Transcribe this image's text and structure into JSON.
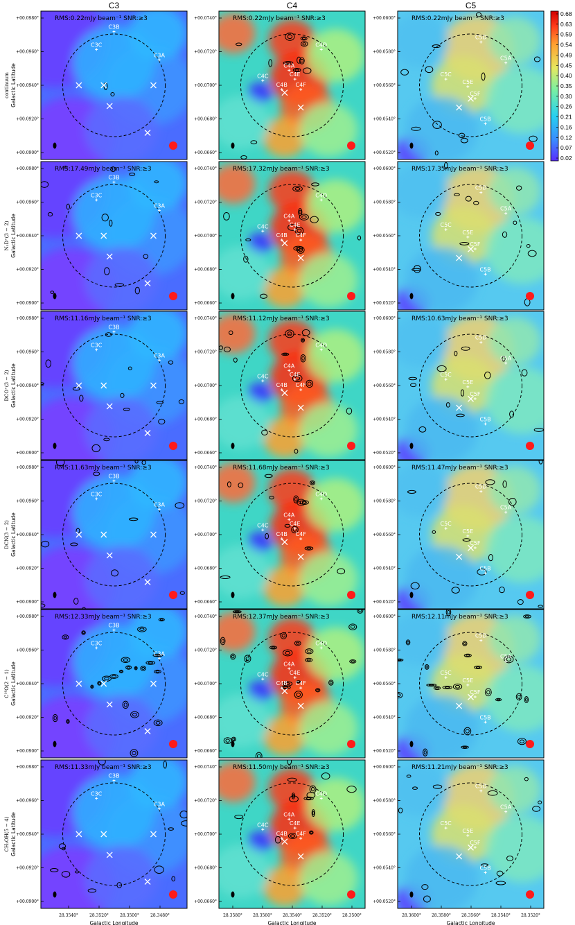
{
  "columns": [
    "C3",
    "C4",
    "C5"
  ],
  "rows": [
    {
      "label": "continuum",
      "rms": [
        "RMS:0.22mJy beam⁻¹ SNR:≥3",
        "RMS:0.22mJy beam⁻¹ SNR:≥3",
        "RMS:0.22mJy beam⁻¹ SNR:≥3"
      ]
    },
    {
      "label": "N₂D⁺(3 − 2)",
      "rms": [
        "RMS:17.49mJy beam⁻¹ SNR:≥3",
        "RMS:17.32mJy beam⁻¹ SNR:≥3",
        "RMS:17.35mJy beam⁻¹ SNR:≥3"
      ]
    },
    {
      "label": "DCO⁺(3 − 2)",
      "rms": [
        "RMS:11.16mJy beam⁻¹ SNR:≥3",
        "RMS:11.12mJy beam⁻¹ SNR:≥3",
        "RMS:10.63mJy beam⁻¹ SNR:≥3"
      ]
    },
    {
      "label": "DCN(3 − 2)",
      "rms": [
        "RMS:11.63mJy beam⁻¹ SNR:≥3",
        "RMS:11.68mJy beam⁻¹ SNR:≥3",
        "RMS:11.47mJy beam⁻¹ SNR:≥3"
      ]
    },
    {
      "label": "C¹⁸O(2 − 1)",
      "rms": [
        "RMS:12.33mJy beam⁻¹ SNR:≥3",
        "RMS:12.37mJy beam⁻¹ SNR:≥3",
        "RMS:12.11mJy beam⁻¹ SNR:≥3"
      ]
    },
    {
      "label": "CH₃OH(5 − 4)",
      "rms": [
        "RMS:11.33mJy beam⁻¹ SNR:≥3",
        "RMS:11.50mJy beam⁻¹ SNR:≥3",
        "RMS:11.21mJy beam⁻¹ SNR:≥3"
      ]
    }
  ],
  "ylabel": "Galactic Latitude",
  "xlabel": "Galactic Longitude",
  "yticks": [
    [
      "+00.0980°",
      "+00.0960°",
      "+00.0940°",
      "+00.0920°",
      "+00.0900°"
    ],
    [
      "+00.0740°",
      "+00.0720°",
      "+00.0700°",
      "+00.0680°",
      "+00.0660°"
    ],
    [
      "+00.0600°",
      "+00.0580°",
      "+00.0560°",
      "+00.0540°",
      "+00.0520°"
    ]
  ],
  "xticks": [
    [
      "28.3540°",
      "28.3520°",
      "28.3500°",
      "28.3480°"
    ],
    [
      "28.3580°",
      "28.3560°",
      "28.3540°",
      "28.3520°",
      "28.3500°"
    ],
    [
      "28.3600°",
      "28.3580°",
      "28.3560°",
      "28.3540°",
      "28.3520°"
    ]
  ],
  "cores": [
    [
      "C3B",
      "C3C",
      "C3A"
    ],
    [
      "C4D",
      "C4A",
      "C4E",
      "C4C",
      "C4B",
      "C4F"
    ],
    [
      "C5D",
      "C5A",
      "C5C",
      "C5E",
      "C5F",
      "C5B"
    ]
  ],
  "colorbar": {
    "ticks": [
      "0.68",
      "0.63",
      "0.59",
      "0.54",
      "0.49",
      "0.45",
      "0.40",
      "0.35",
      "0.30",
      "0.26",
      "0.21",
      "0.16",
      "0.12",
      "0.07",
      "0.02"
    ],
    "colors": [
      "#5a2bff",
      "#3a8cff",
      "#27d0f0",
      "#7ef0a0",
      "#e6e860",
      "#ffa030",
      "#ff3b1a",
      "#d20000"
    ]
  },
  "colors": {
    "beam_marker": "#ff1a1a",
    "contour": "#000000",
    "annotation": "#ffffff"
  }
}
